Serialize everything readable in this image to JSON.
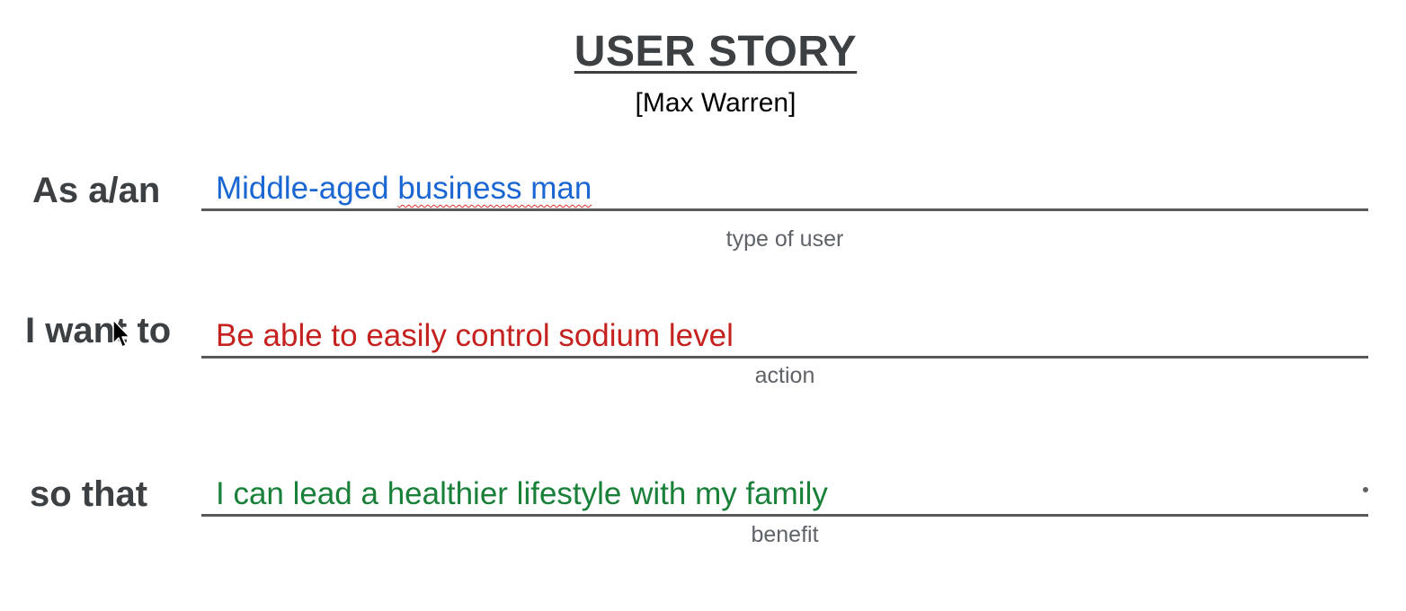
{
  "header": {
    "title": "USER STORY",
    "author": "[Max Warren]"
  },
  "rows": [
    {
      "label": "As a/an",
      "value_prefix": "Middle-aged ",
      "value_misspelled": "business man",
      "caption": "type of user",
      "color": "#1a66d2"
    },
    {
      "label": "I want to",
      "value": "Be able to easily control sodium level",
      "caption": "action",
      "color": "#c5221f"
    },
    {
      "label": "so that",
      "value": "I can lead a healthier lifestyle with my family",
      "caption": "benefit",
      "color": "#188038"
    }
  ],
  "icons": {
    "cursor": "mouse-pointer-icon"
  }
}
